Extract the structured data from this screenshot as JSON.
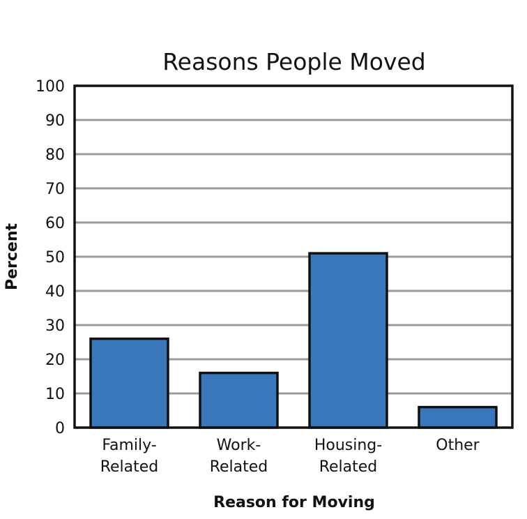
{
  "chart_data": {
    "type": "bar",
    "title": "Reasons People Moved",
    "xlabel": "Reason for Moving",
    "ylabel": "Percent",
    "categories": [
      [
        "Family-",
        "Related"
      ],
      [
        "Work-",
        "Related"
      ],
      [
        "Housing-",
        "Related"
      ],
      [
        "Other"
      ]
    ],
    "values": [
      26,
      16,
      51,
      6
    ],
    "ylim": [
      0,
      100
    ],
    "yticks": [
      0,
      10,
      20,
      30,
      40,
      50,
      60,
      70,
      80,
      90,
      100
    ],
    "grid": true,
    "bar_color": "#3a78bd",
    "grid_color": "#9a9a9a"
  }
}
